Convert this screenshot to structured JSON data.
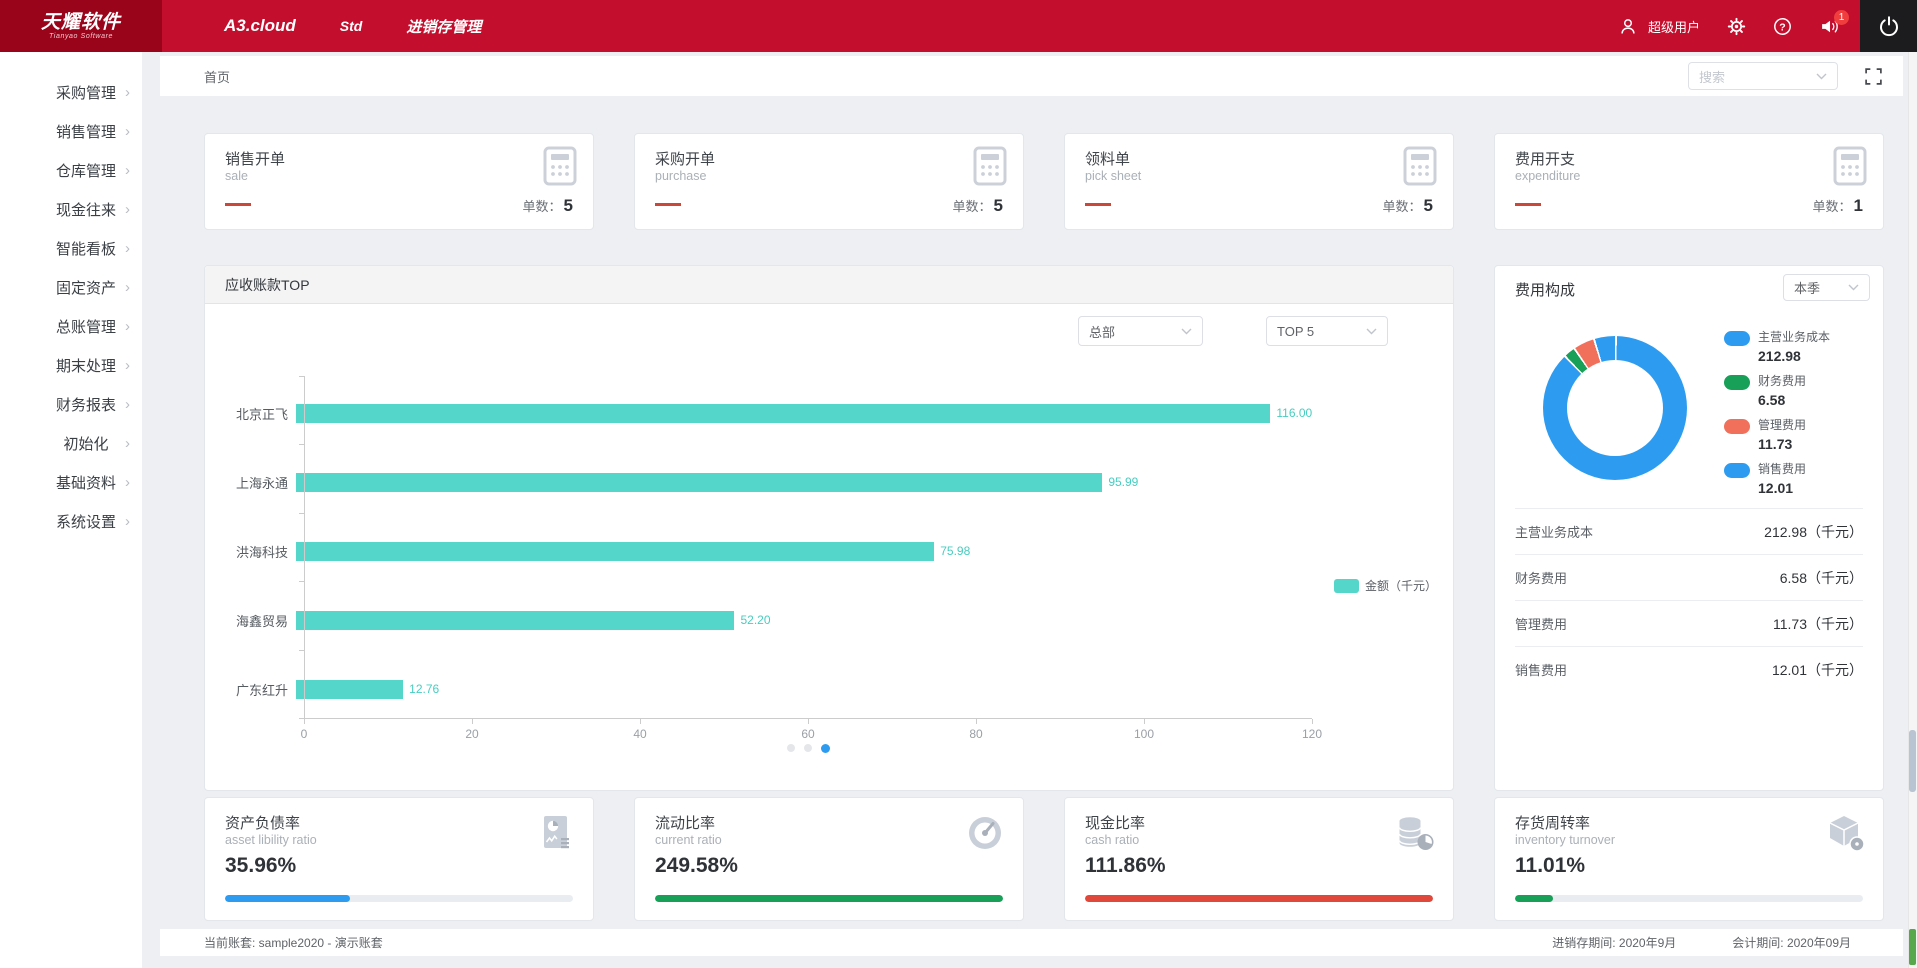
{
  "app": {
    "brand_red": "#c30e2d",
    "brand_dark_red": "#99041b"
  },
  "header": {
    "logo_title": "天耀软件",
    "logo_subtitle": "Tianyao Software",
    "nav": [
      {
        "label": "A3.cloud"
      },
      {
        "label": "Std"
      },
      {
        "label": "进销存管理"
      }
    ],
    "user_name": "超级用户",
    "notification_badge": "1",
    "icons": [
      "user-icon",
      "gear-icon",
      "help-icon",
      "speaker-icon",
      "power-icon"
    ]
  },
  "sidebar": {
    "items": [
      {
        "label": "采购管理"
      },
      {
        "label": "销售管理"
      },
      {
        "label": "仓库管理"
      },
      {
        "label": "现金往来"
      },
      {
        "label": "智能看板"
      },
      {
        "label": "固定资产"
      },
      {
        "label": "总账管理"
      },
      {
        "label": "期末处理"
      },
      {
        "label": "财务报表"
      },
      {
        "label": "初始化"
      },
      {
        "label": "基础资料"
      },
      {
        "label": "系统设置"
      }
    ]
  },
  "breadcrumb": {
    "home": "首页",
    "search_placeholder": "搜索"
  },
  "stat_cards": [
    {
      "title": "销售开单",
      "subtitle": "sale",
      "count_label": "单数：",
      "count": "5",
      "icon": "calculator-icon"
    },
    {
      "title": "采购开单",
      "subtitle": "purchase",
      "count_label": "单数：",
      "count": "5",
      "icon": "calculator-icon"
    },
    {
      "title": "领料单",
      "subtitle": "pick sheet",
      "count_label": "单数：",
      "count": "5",
      "icon": "calculator-icon"
    },
    {
      "title": "费用开支",
      "subtitle": "expenditure",
      "count_label": "单数：",
      "count": "1",
      "icon": "calculator-icon"
    }
  ],
  "receivables_panel": {
    "title": "应收账款TOP",
    "org_filter": "总部",
    "top_filter": "TOP 5",
    "legend": "金额（千元）",
    "bar_color": "#54d6cb",
    "pager": {
      "count": 3,
      "active": 2
    },
    "chart_data": {
      "type": "bar",
      "orientation": "horizontal",
      "categories": [
        "北京正飞",
        "上海永通",
        "洪海科技",
        "海鑫贸易",
        "广东红升"
      ],
      "values": [
        116.0,
        95.99,
        75.98,
        52.2,
        12.76
      ],
      "value_labels": [
        "116.00",
        "95.99",
        "75.98",
        "52.20",
        "12.76"
      ],
      "xlim": [
        0,
        120
      ],
      "x_ticks": [
        0,
        20,
        40,
        60,
        80,
        100,
        120
      ],
      "series_name": "金额（千元）",
      "grid": false,
      "legend_position": "right"
    }
  },
  "expense_panel": {
    "title": "费用构成",
    "period_filter": "本季",
    "chart_data": {
      "type": "pie",
      "donut": true,
      "labels": [
        "主营业务成本",
        "财务费用",
        "管理费用",
        "销售费用"
      ],
      "values": [
        212.98,
        6.58,
        11.73,
        12.01
      ],
      "colors": [
        "#2d9cf0",
        "#18a058",
        "#f0705c",
        "#2d9cf0"
      ]
    },
    "legend": [
      {
        "label": "主营业务成本",
        "value": "212.98",
        "color": "#2d9cf0"
      },
      {
        "label": "财务费用",
        "value": "6.58",
        "color": "#18a058"
      },
      {
        "label": "管理费用",
        "value": "11.73",
        "color": "#f0705c"
      },
      {
        "label": "销售费用",
        "value": "12.01",
        "color": "#2d9cf0"
      }
    ],
    "rows": [
      {
        "label": "主营业务成本",
        "value": "212.98（千元）"
      },
      {
        "label": "财务费用",
        "value": "6.58（千元）"
      },
      {
        "label": "管理费用",
        "value": "11.73（千元）"
      },
      {
        "label": "销售费用",
        "value": "12.01（千元）"
      }
    ]
  },
  "kpi_cards": [
    {
      "title": "资产负债率",
      "subtitle": "asset libility ratio",
      "value": "35.96%",
      "bar_percent": 36,
      "bar_color": "#2d9cf0",
      "icon": "report-icon"
    },
    {
      "title": "流动比率",
      "subtitle": "current ratio",
      "value": "249.58%",
      "bar_percent": 100,
      "bar_color": "#18a058",
      "icon": "gauge-icon"
    },
    {
      "title": "现金比率",
      "subtitle": "cash ratio",
      "value": "111.86%",
      "bar_percent": 100,
      "bar_color": "#e0483c",
      "icon": "coins-icon"
    },
    {
      "title": "存货周转率",
      "subtitle": "inventory turnover",
      "value": "11.01%",
      "bar_percent": 11,
      "bar_color": "#18a058",
      "icon": "cube-icon"
    }
  ],
  "footer": {
    "account": "当前账套: sample2020 - 演示账套",
    "inventory_period": "进销存期间: 2020年9月",
    "accounting_period": "会计期间: 2020年09月"
  }
}
